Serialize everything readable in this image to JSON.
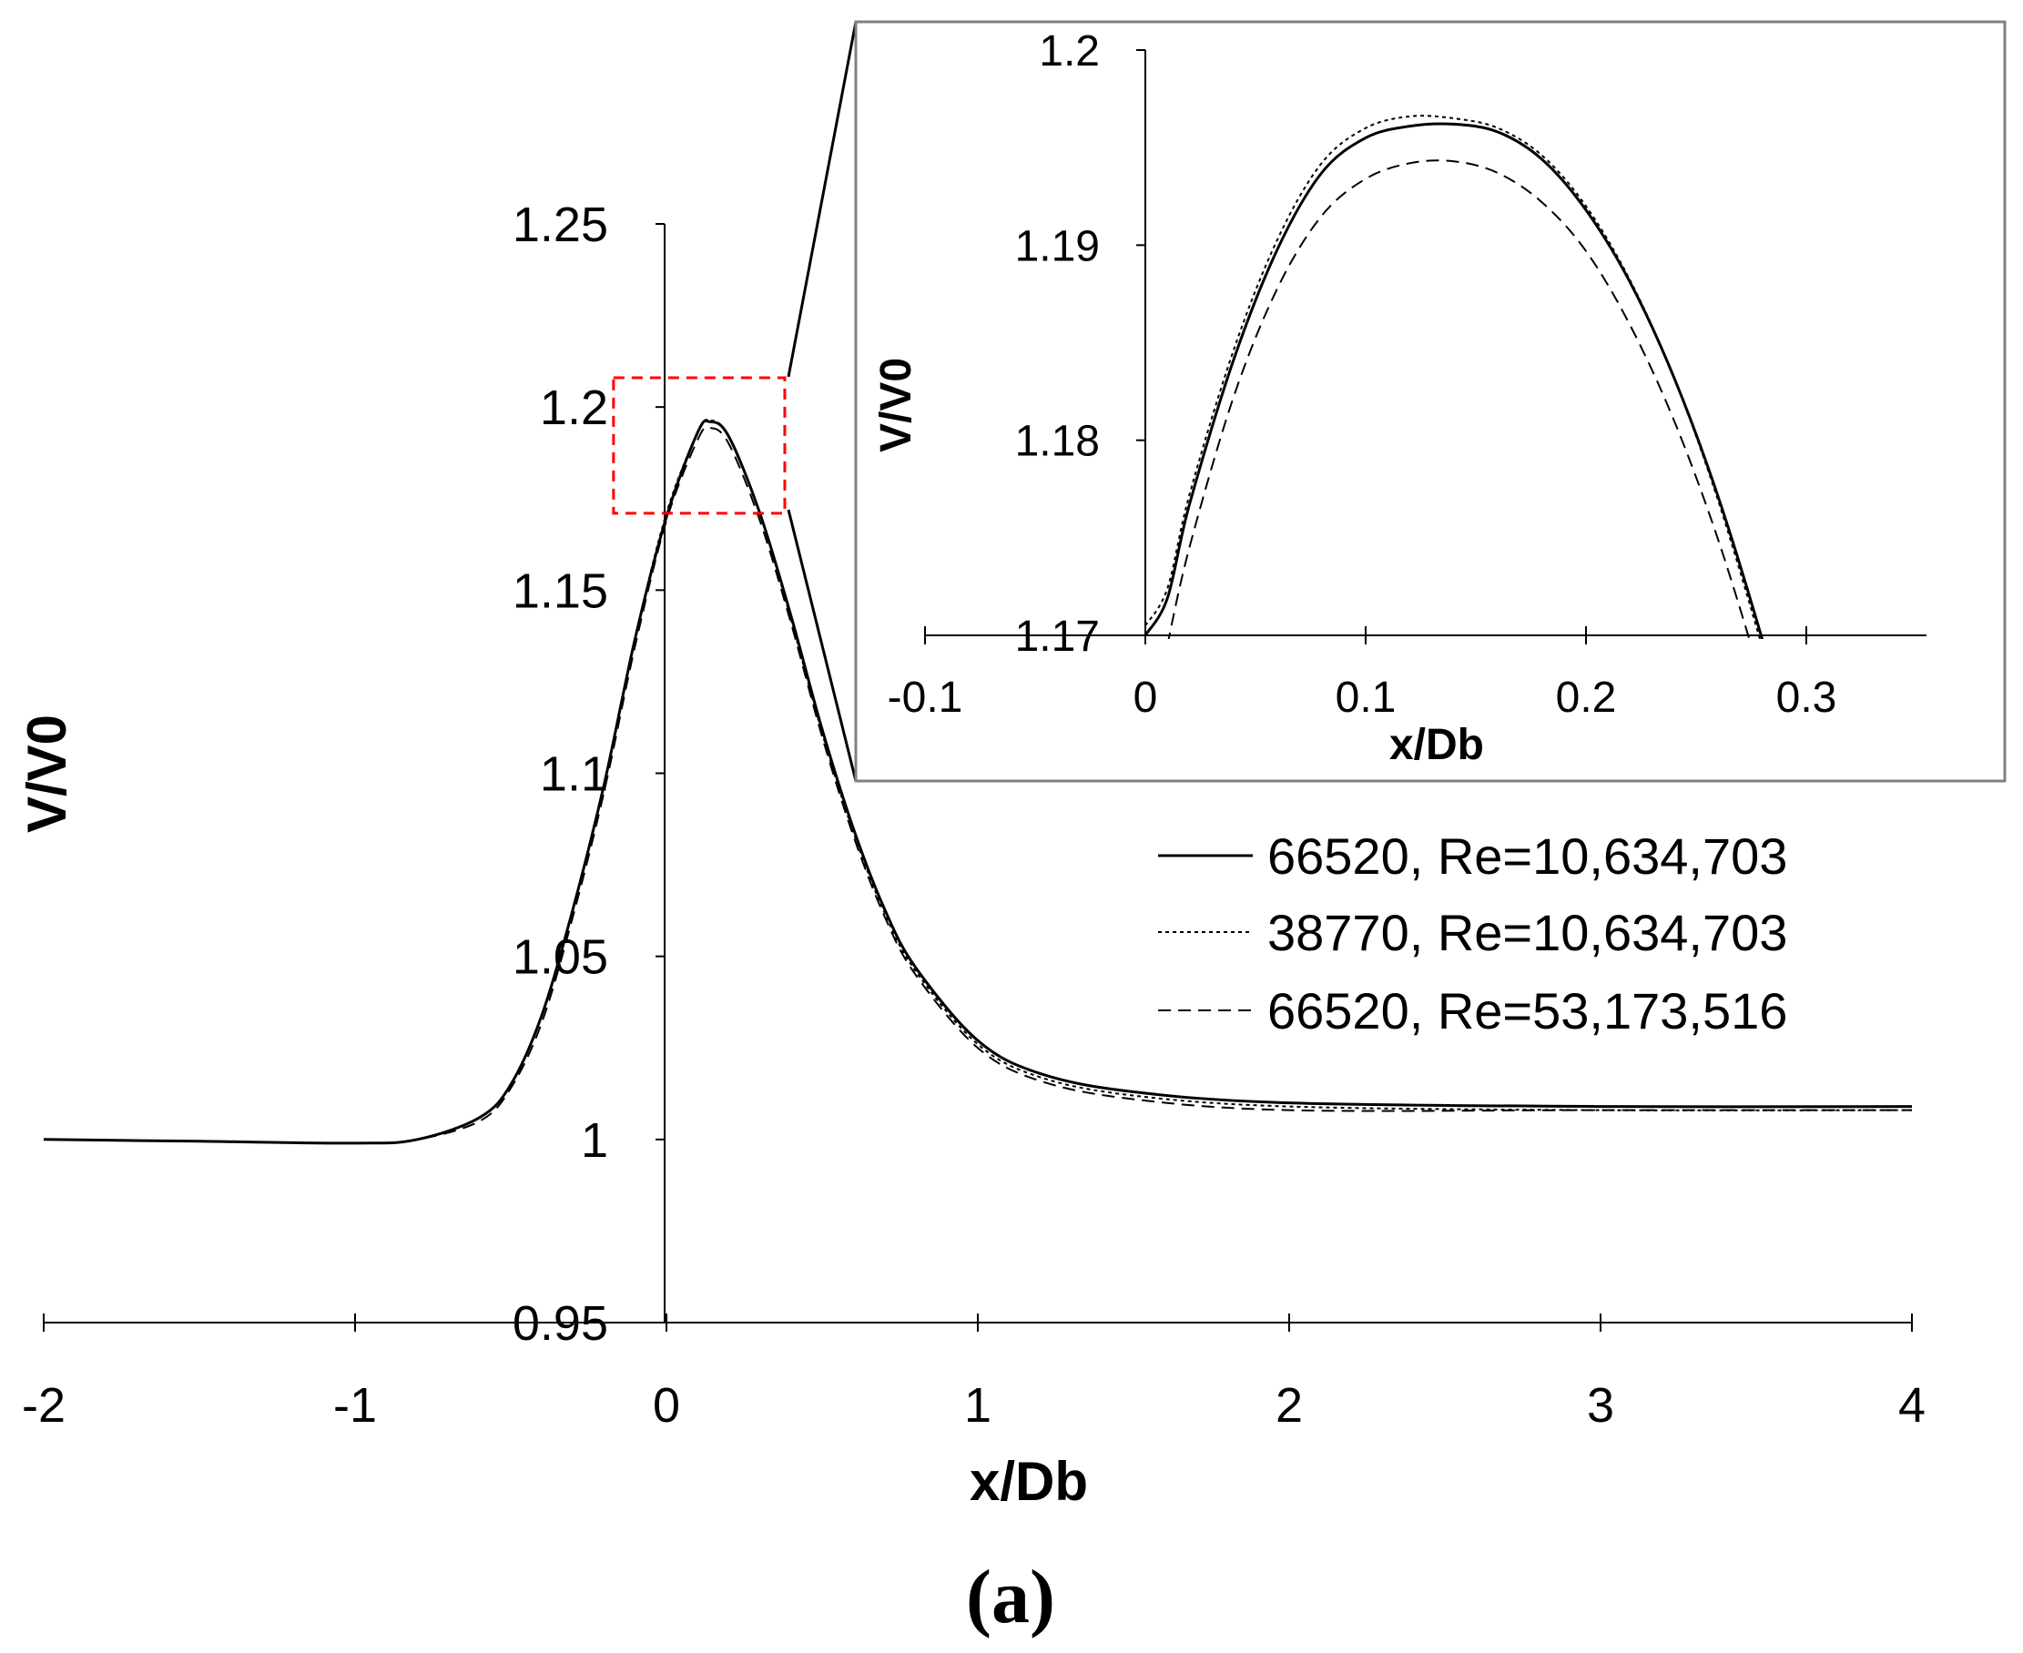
{
  "chart_data": [
    {
      "type": "line",
      "panel": "main",
      "xlabel": "x/Db",
      "ylabel": "V/V0",
      "xlim": [
        -2,
        4
      ],
      "ylim": [
        0.95,
        1.25
      ],
      "xticks": [
        "-2",
        "-1",
        "0",
        "1",
        "2",
        "3",
        "4"
      ],
      "yticks": [
        "0.95",
        "1",
        "1.05",
        "1.1",
        "1.15",
        "1.2",
        "1.25"
      ],
      "grid": false,
      "legend_position": "right",
      "series": [
        {
          "name": "66520, Re=10,634,703",
          "style": "solid",
          "x": [
            -2,
            -1.5,
            -1,
            -0.8,
            -0.6,
            -0.5,
            -0.4,
            -0.3,
            -0.2,
            -0.1,
            0,
            0.1,
            0.14,
            0.2,
            0.3,
            0.4,
            0.5,
            0.6,
            0.7,
            0.8,
            1,
            1.2,
            1.5,
            2,
            3,
            4
          ],
          "y": [
            1.0,
            0.9995,
            0.999,
            1.0,
            1.006,
            1.015,
            1.034,
            1.063,
            1.097,
            1.137,
            1.17,
            1.193,
            1.196,
            1.192,
            1.171,
            1.143,
            1.112,
            1.085,
            1.063,
            1.047,
            1.027,
            1.018,
            1.013,
            1.01,
            1.009,
            1.009
          ]
        },
        {
          "name": "38770, Re=10,634,703",
          "style": "dotted",
          "x": [
            -2,
            -1.5,
            -1,
            -0.8,
            -0.6,
            -0.5,
            -0.4,
            -0.3,
            -0.2,
            -0.1,
            0,
            0.1,
            0.14,
            0.2,
            0.3,
            0.4,
            0.5,
            0.6,
            0.7,
            0.8,
            1,
            1.2,
            1.5,
            2,
            3,
            4
          ],
          "y": [
            1.0,
            0.9995,
            0.999,
            1.0,
            1.006,
            1.015,
            1.034,
            1.063,
            1.097,
            1.137,
            1.171,
            1.193,
            1.1964,
            1.192,
            1.171,
            1.142,
            1.111,
            1.084,
            1.062,
            1.046,
            1.026,
            1.017,
            1.012,
            1.009,
            1.008,
            1.008
          ]
        },
        {
          "name": "66520, Re=53,173,516",
          "style": "dashed",
          "x": [
            -2,
            -1.5,
            -1,
            -0.8,
            -0.6,
            -0.5,
            -0.4,
            -0.3,
            -0.2,
            -0.1,
            0,
            0.1,
            0.14,
            0.2,
            0.3,
            0.4,
            0.5,
            0.6,
            0.7,
            0.8,
            1,
            1.2,
            1.5,
            2,
            3,
            4
          ],
          "y": [
            1.0,
            0.9995,
            0.999,
            1.0,
            1.005,
            1.014,
            1.032,
            1.061,
            1.095,
            1.135,
            1.169,
            1.191,
            1.1943,
            1.19,
            1.169,
            1.141,
            1.11,
            1.083,
            1.061,
            1.045,
            1.025,
            1.016,
            1.011,
            1.008,
            1.008,
            1.008
          ]
        }
      ],
      "zoom_box": {
        "x": [
          -0.17,
          0.38
        ],
        "y": [
          1.171,
          1.208
        ],
        "color": "#ff0000"
      }
    },
    {
      "type": "line",
      "panel": "inset",
      "xlabel": "x/Db",
      "ylabel": "V/V0",
      "xlim": [
        -0.1,
        0.35
      ],
      "ylim": [
        1.17,
        1.2
      ],
      "xticks": [
        "-0.1",
        "0",
        "0.1",
        "0.2",
        "0.3"
      ],
      "yticks": [
        "1.17",
        "1.18",
        "1.19",
        "1.2"
      ],
      "grid": false,
      "series": [
        {
          "name": "66520, Re=10,634,703",
          "style": "solid",
          "x": [
            0,
            0.01,
            0.02,
            0.04,
            0.06,
            0.08,
            0.1,
            0.12,
            0.14,
            0.16,
            0.18,
            0.2,
            0.22,
            0.24,
            0.26,
            0.28,
            0.292
          ],
          "y": [
            1.17,
            1.1719,
            1.1767,
            1.1841,
            1.1898,
            1.1937,
            1.1955,
            1.1961,
            1.1962,
            1.1958,
            1.1944,
            1.1918,
            1.1881,
            1.1832,
            1.1771,
            1.1698,
            1.1648
          ]
        },
        {
          "name": "38770, Re=10,634,703",
          "style": "dotted",
          "x": [
            0,
            0.01,
            0.02,
            0.04,
            0.06,
            0.08,
            0.1,
            0.12,
            0.14,
            0.16,
            0.18,
            0.2,
            0.22,
            0.24,
            0.26,
            0.28,
            0.29
          ],
          "y": [
            1.1705,
            1.1724,
            1.1772,
            1.1846,
            1.1903,
            1.1942,
            1.196,
            1.1966,
            1.1965,
            1.196,
            1.1946,
            1.192,
            1.1882,
            1.1832,
            1.1769,
            1.1694,
            1.1652
          ]
        },
        {
          "name": "66520, Re=53,173,516",
          "style": "dashed",
          "x": [
            0.01,
            0.02,
            0.04,
            0.06,
            0.08,
            0.1,
            0.12,
            0.14,
            0.16,
            0.18,
            0.2,
            0.22,
            0.24,
            0.26,
            0.28,
            0.288
          ],
          "y": [
            1.1695,
            1.1745,
            1.1822,
            1.1878,
            1.1915,
            1.1934,
            1.1942,
            1.1943,
            1.1937,
            1.1922,
            1.1897,
            1.1859,
            1.181,
            1.1749,
            1.1676,
            1.1644
          ]
        }
      ]
    }
  ],
  "caption": "(a)"
}
